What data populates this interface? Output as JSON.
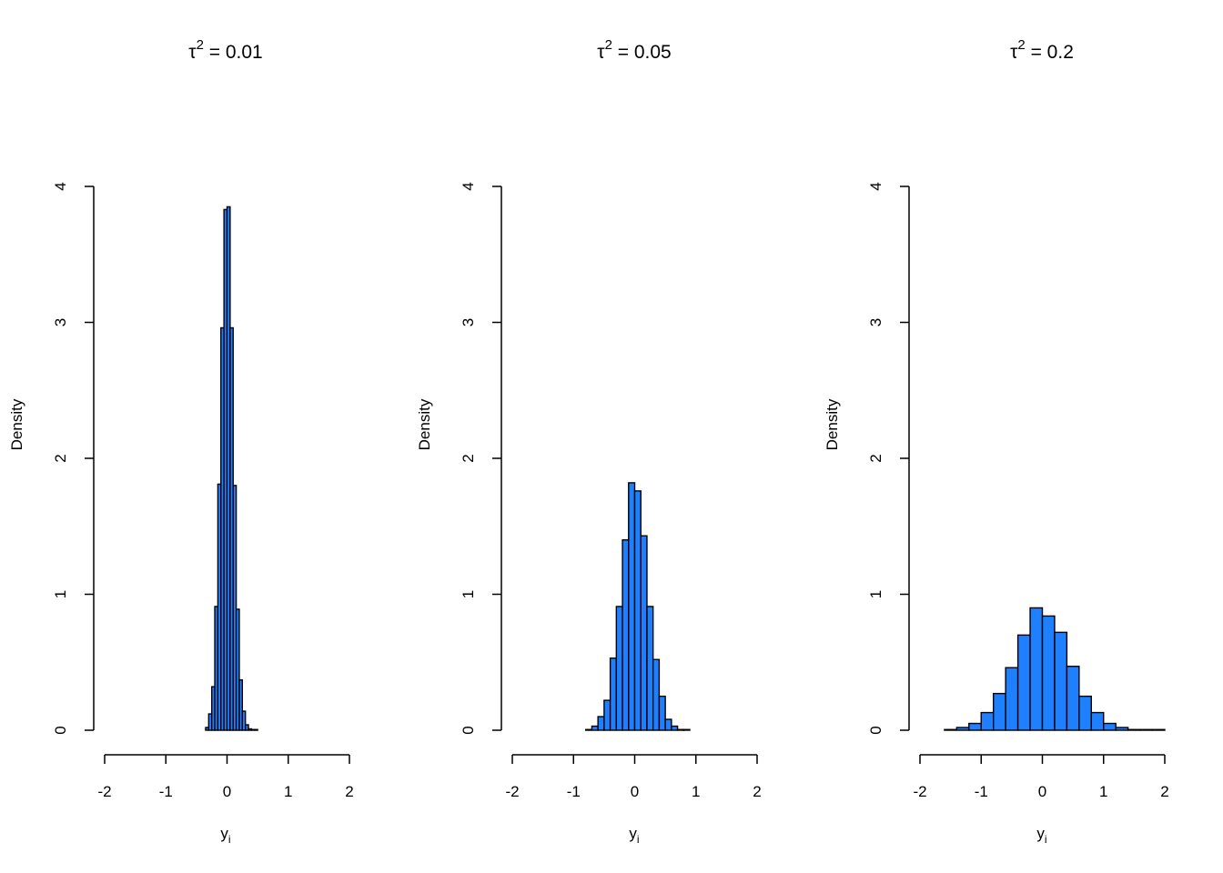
{
  "colors": {
    "bar_fill": "#1E7FFF",
    "bar_stroke": "#000000",
    "background": "#FFFFFF"
  },
  "chart_data": [
    {
      "type": "bar",
      "subtype": "histogram",
      "title": {
        "symbol": "τ",
        "exponent": "2",
        "rest": " = 0.01"
      },
      "xlabel": {
        "base": "y",
        "subscript": "i"
      },
      "ylabel": "Density",
      "xlim": [
        -2,
        2
      ],
      "ylim": [
        0,
        4
      ],
      "xticks": [
        "-2",
        "-1",
        "0",
        "1",
        "2"
      ],
      "yticks": [
        "0",
        "1",
        "2",
        "3",
        "4"
      ],
      "bin_edges": [
        -0.35,
        -0.3,
        -0.25,
        -0.2,
        -0.15,
        -0.1,
        -0.05,
        0.0,
        0.05,
        0.1,
        0.15,
        0.2,
        0.25,
        0.3,
        0.35,
        0.4,
        0.45,
        0.5
      ],
      "values": [
        0.02,
        0.12,
        0.32,
        0.91,
        1.81,
        2.96,
        3.83,
        3.85,
        2.96,
        1.8,
        0.89,
        0.37,
        0.14,
        0.04,
        0.01,
        0.005,
        0.005
      ],
      "grid": false
    },
    {
      "type": "bar",
      "subtype": "histogram",
      "title": {
        "symbol": "τ",
        "exponent": "2",
        "rest": " = 0.05"
      },
      "xlabel": {
        "base": "y",
        "subscript": "i"
      },
      "ylabel": "Density",
      "xlim": [
        -2,
        2
      ],
      "ylim": [
        0,
        4
      ],
      "xticks": [
        "-2",
        "-1",
        "0",
        "1",
        "2"
      ],
      "yticks": [
        "0",
        "1",
        "2",
        "3",
        "4"
      ],
      "bin_edges": [
        -0.8,
        -0.7,
        -0.6,
        -0.5,
        -0.4,
        -0.3,
        -0.2,
        -0.1,
        0.0,
        0.1,
        0.2,
        0.3,
        0.4,
        0.5,
        0.6,
        0.7,
        0.8,
        0.9
      ],
      "values": [
        0.005,
        0.03,
        0.1,
        0.22,
        0.53,
        0.91,
        1.4,
        1.82,
        1.76,
        1.43,
        0.91,
        0.52,
        0.25,
        0.08,
        0.03,
        0.005,
        0.005
      ],
      "grid": false
    },
    {
      "type": "bar",
      "subtype": "histogram",
      "title": {
        "symbol": "τ",
        "exponent": "2",
        "rest": " = 0.2"
      },
      "xlabel": {
        "base": "y",
        "subscript": "i"
      },
      "ylabel": "Density",
      "xlim": [
        -2,
        2
      ],
      "ylim": [
        0,
        4
      ],
      "xticks": [
        "-2",
        "-1",
        "0",
        "1",
        "2"
      ],
      "yticks": [
        "0",
        "1",
        "2",
        "3",
        "4"
      ],
      "bin_edges": [
        -1.6,
        -1.4,
        -1.2,
        -1.0,
        -0.8,
        -0.6,
        -0.4,
        -0.2,
        0.0,
        0.2,
        0.4,
        0.6,
        0.8,
        1.0,
        1.2,
        1.4,
        1.6,
        1.8,
        2.0
      ],
      "values": [
        0.005,
        0.02,
        0.05,
        0.13,
        0.27,
        0.46,
        0.7,
        0.9,
        0.84,
        0.72,
        0.47,
        0.25,
        0.13,
        0.05,
        0.02,
        0.005,
        0.005,
        0.005
      ],
      "grid": false
    }
  ]
}
